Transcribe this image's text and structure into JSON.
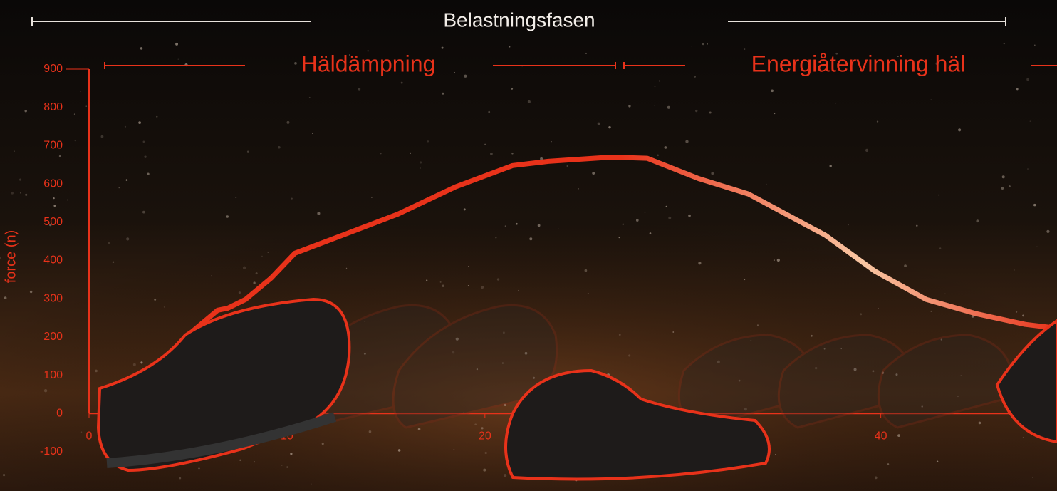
{
  "chart_data": {
    "type": "line",
    "title": "Belastningsfasen",
    "phases": [
      "Häldämpning",
      "Energiåtervinning häl"
    ],
    "y_label": "force (n)",
    "x": [
      5.0,
      6.5,
      7.0,
      7.9,
      9.2,
      10.4,
      12.8,
      15.6,
      18.5,
      21.4,
      23.2,
      26.4,
      28.2,
      30.8,
      33.3,
      37.2,
      39.7,
      42.3,
      44.8,
      47.3,
      48.9
    ],
    "series": [
      {
        "values": [
          205,
          270,
          275,
          298,
          354,
          419,
          466,
          521,
          592,
          648,
          659,
          670,
          667,
          614,
          574,
          466,
          372,
          298,
          261,
          233,
          223
        ],
        "color": "#e8321a",
        "highlight_color": "#f9c7a3"
      }
    ],
    "xlim": [
      0,
      48.9
    ],
    "ylim": [
      -100,
      900
    ],
    "xticks": [
      0,
      10,
      20,
      40
    ],
    "yticks": [
      -100,
      0,
      100,
      200,
      300,
      400,
      500,
      600,
      700,
      800,
      900
    ],
    "axis_color": "#e8321a"
  }
}
